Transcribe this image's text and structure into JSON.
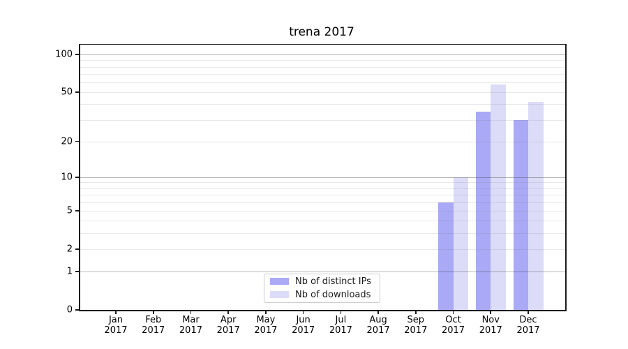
{
  "chart_data": {
    "type": "bar",
    "title": "trena 2017",
    "categories": [
      "Jan 2017",
      "Feb 2017",
      "Mar 2017",
      "Apr 2017",
      "May 2017",
      "Jun 2017",
      "Jul 2017",
      "Aug 2017",
      "Sep 2017",
      "Oct 2017",
      "Nov 2017",
      "Dec 2017"
    ],
    "series": [
      {
        "name": "Nb of distinct IPs",
        "color": "#a9a9f5",
        "values": [
          0,
          0,
          0,
          0,
          0,
          0,
          0,
          0,
          0,
          6,
          35,
          30
        ]
      },
      {
        "name": "Nb of downloads",
        "color": "#dcdcf8",
        "values": [
          0,
          0,
          0,
          0,
          0,
          0,
          0,
          0,
          0,
          10,
          58,
          42
        ]
      }
    ],
    "xlabel": "",
    "ylabel": "",
    "yscale": "log1p",
    "ylim": [
      0,
      121
    ],
    "yticks": [
      0,
      1,
      2,
      5,
      10,
      20,
      50,
      100
    ],
    "major_gridlines": [
      1,
      10,
      100
    ],
    "minor_gridlines": [
      2,
      3,
      4,
      5,
      6,
      7,
      8,
      9,
      20,
      30,
      40,
      50,
      60,
      70,
      80,
      90
    ],
    "grid": "horizontal",
    "legend_position": "bottom-center-inside"
  },
  "colors": {
    "background": "#ffffff",
    "axis": "#1a1a1a",
    "series_dark": "#a9a9f5",
    "series_light": "#dcdcf8"
  }
}
